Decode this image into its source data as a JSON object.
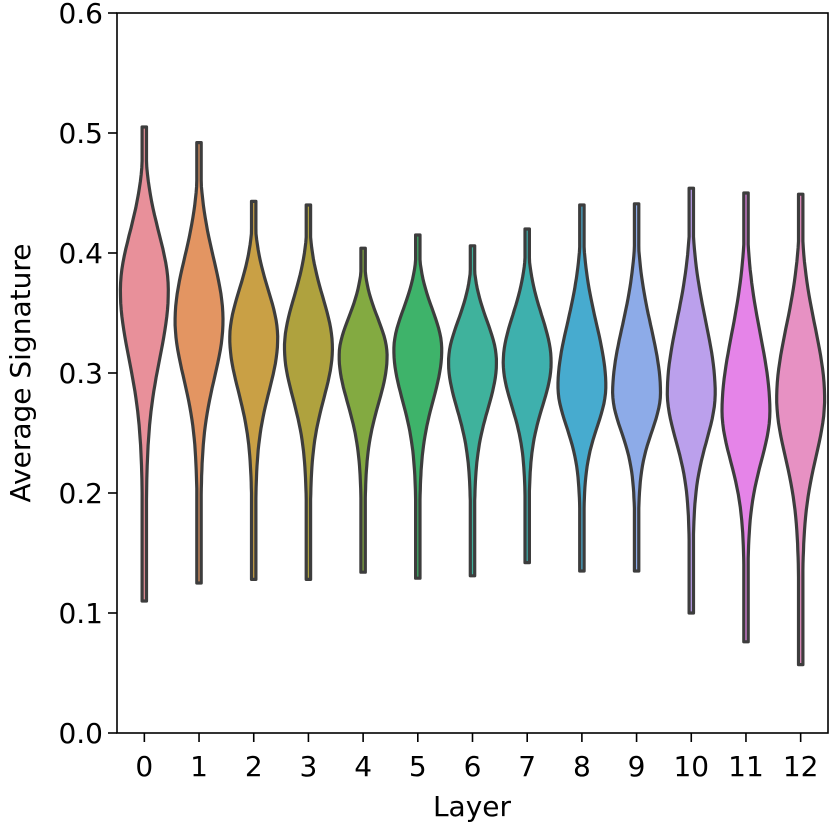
{
  "chart_data": {
    "type": "violin",
    "xlabel": "Layer",
    "ylabel": "Average Signature",
    "ylim": [
      0.0,
      0.6
    ],
    "yticks": [
      "0.0",
      "0.1",
      "0.2",
      "0.3",
      "0.4",
      "0.5",
      "0.6"
    ],
    "categories": [
      "0",
      "1",
      "2",
      "3",
      "4",
      "5",
      "6",
      "7",
      "8",
      "9",
      "10",
      "11",
      "12"
    ],
    "grid": false,
    "legend": "none",
    "violins": [
      {
        "category": "0",
        "min": 0.11,
        "max": 0.505,
        "peak": 0.37,
        "color": "#e8909a"
      },
      {
        "category": "1",
        "min": 0.125,
        "max": 0.492,
        "peak": 0.345,
        "color": "#e39562"
      },
      {
        "category": "2",
        "min": 0.128,
        "max": 0.443,
        "peak": 0.33,
        "color": "#c9a045"
      },
      {
        "category": "3",
        "min": 0.128,
        "max": 0.44,
        "peak": 0.322,
        "color": "#afa23e"
      },
      {
        "category": "4",
        "min": 0.134,
        "max": 0.404,
        "peak": 0.315,
        "color": "#83aa41"
      },
      {
        "category": "5",
        "min": 0.129,
        "max": 0.415,
        "peak": 0.32,
        "color": "#3eb36a"
      },
      {
        "category": "6",
        "min": 0.131,
        "max": 0.406,
        "peak": 0.31,
        "color": "#3fb29c"
      },
      {
        "category": "7",
        "min": 0.142,
        "max": 0.42,
        "peak": 0.31,
        "color": "#3eb0ad"
      },
      {
        "category": "8",
        "min": 0.135,
        "max": 0.44,
        "peak": 0.29,
        "color": "#47abcf"
      },
      {
        "category": "9",
        "min": 0.135,
        "max": 0.441,
        "peak": 0.285,
        "color": "#8dabe8"
      },
      {
        "category": "10",
        "min": 0.1,
        "max": 0.454,
        "peak": 0.285,
        "color": "#bba0ec"
      },
      {
        "category": "11",
        "min": 0.076,
        "max": 0.45,
        "peak": 0.27,
        "color": "#e584e8"
      },
      {
        "category": "12",
        "min": 0.057,
        "max": 0.449,
        "peak": 0.28,
        "color": "#e791c3"
      }
    ]
  }
}
